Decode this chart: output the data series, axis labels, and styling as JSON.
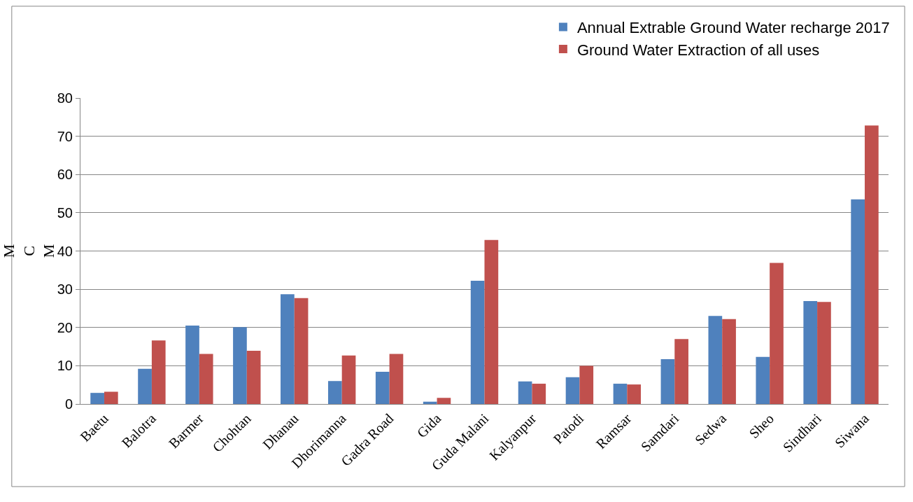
{
  "chart_data": {
    "type": "bar",
    "ylabel": "MCM",
    "categories": [
      "Baetu",
      "Balotra",
      "Barmer",
      "Chohtan",
      "Dhanau",
      "Dhorimanna",
      "Gadra Road",
      "Gida",
      "Guda Malani",
      "Kalyanpur",
      "Patodi",
      "Ramsar",
      "Samdari",
      "Sedwa",
      "Sheo",
      "Sindhari",
      "Siwana"
    ],
    "series": [
      {
        "name": "Annual Extrable Ground Water recharge 2017",
        "color": "#4f81bd",
        "values": [
          2.9,
          9.2,
          20.5,
          20.1,
          28.7,
          6.0,
          8.4,
          0.6,
          32.2,
          5.9,
          7.0,
          5.3,
          11.7,
          23.0,
          12.3,
          26.9,
          53.5
        ]
      },
      {
        "name": "Ground Water Extraction of all uses",
        "color": "#c0504d",
        "values": [
          3.2,
          16.6,
          13.1,
          13.9,
          27.7,
          12.7,
          13.1,
          1.6,
          42.9,
          5.3,
          10.0,
          5.1,
          17.0,
          22.2,
          36.9,
          26.7,
          72.8
        ]
      }
    ],
    "ylim": [
      0,
      80
    ],
    "yticks": [
      0,
      10,
      20,
      30,
      40,
      50,
      60,
      70,
      80
    ],
    "grid": "y",
    "legend": "top right"
  }
}
